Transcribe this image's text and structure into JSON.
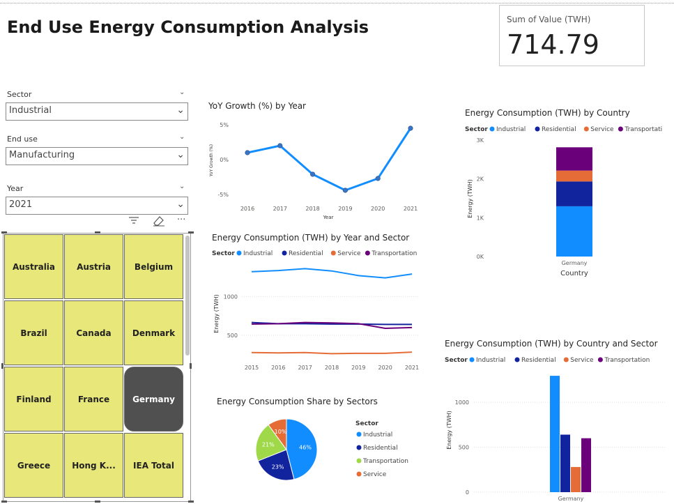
{
  "title": "End Use Energy Consumption Analysis",
  "card": {
    "label": "Sum of Value (TWH)",
    "value": "714.79"
  },
  "slicers": [
    {
      "label": "Sector",
      "value": "Industrial"
    },
    {
      "label": "End use",
      "value": "Manufacturing"
    },
    {
      "label": "Year",
      "value": "2021"
    }
  ],
  "toolbar": {
    "filter_icon": "filter-icon",
    "eraser_icon": "eraser-icon",
    "more_label": "..."
  },
  "countries": [
    "Australia",
    "Austria",
    "Belgium",
    "Brazil",
    "Canada",
    "Denmark",
    "Finland",
    "France",
    "Germany",
    "Greece",
    "Hong K...",
    "IEA Total"
  ],
  "selected_country": "Germany",
  "colors": {
    "industrial": "#118dff",
    "residential": "#12239e",
    "service": "#e66c37",
    "transportation": "#6b007b",
    "tile": "#e8e87a",
    "tile_selected": "#505050"
  },
  "chart_data": [
    {
      "type": "line",
      "title": "YoY Growth (%) by Year",
      "xlabel": "Year",
      "ylabel": "YoY Growth (%)",
      "x": [
        2016,
        2017,
        2018,
        2019,
        2020,
        2021
      ],
      "series": [
        {
          "values": [
            1.0,
            2.0,
            -2.1,
            -4.4,
            -2.7,
            4.5
          ]
        }
      ],
      "yticks": [
        "5%",
        "0%",
        "-5%"
      ],
      "ylim": [
        -5,
        5
      ]
    },
    {
      "type": "line",
      "title": "Energy Consumption (TWH) by Year and Sector",
      "legend_title": "Sector",
      "xlabel": "",
      "ylabel": "Energy (TWH)",
      "x": [
        2015,
        2016,
        2017,
        2018,
        2019,
        2020,
        2021
      ],
      "series": [
        {
          "name": "Industrial",
          "values": [
            1325,
            1340,
            1365,
            1335,
            1275,
            1245,
            1295
          ]
        },
        {
          "name": "Residential",
          "values": [
            665,
            650,
            650,
            645,
            645,
            640,
            640
          ]
        },
        {
          "name": "Service",
          "values": [
            275,
            270,
            275,
            260,
            265,
            265,
            280
          ]
        },
        {
          "name": "Transportation",
          "values": [
            645,
            650,
            665,
            660,
            650,
            590,
            600
          ]
        }
      ],
      "yticks": [
        "1000",
        "500"
      ],
      "ylim": [
        200,
        1450
      ]
    },
    {
      "type": "pie",
      "title": "Energy Consumption Share by Sectors",
      "legend_title": "Sector",
      "slices": [
        {
          "name": "Industrial",
          "value": 46,
          "label": "46%"
        },
        {
          "name": "Residential",
          "value": 23,
          "label": "23%"
        },
        {
          "name": "Transportation",
          "value": 21,
          "label": "21%"
        },
        {
          "name": "Service",
          "value": 10,
          "label": "10%"
        }
      ]
    },
    {
      "type": "bar",
      "stacked": true,
      "title": "Energy Consumption (TWH) by Country",
      "legend_title": "Sector",
      "xlabel": "Country",
      "ylabel": "Energy (TWH)",
      "categories": [
        "Germany"
      ],
      "series": [
        {
          "name": "Industrial",
          "values": [
            1295
          ]
        },
        {
          "name": "Residential",
          "values": [
            640
          ]
        },
        {
          "name": "Service",
          "values": [
            280
          ]
        },
        {
          "name": "Transportation",
          "values": [
            600
          ]
        }
      ],
      "yticks": [
        "3K",
        "2K",
        "1K",
        "0K"
      ],
      "ylim": [
        0,
        3000
      ]
    },
    {
      "type": "bar",
      "stacked": false,
      "title": "Energy Consumption (TWH) by Country and Sector",
      "legend_title": "Sector",
      "xlabel": "",
      "ylabel": "Energy (TWH)",
      "categories": [
        "Germany"
      ],
      "series": [
        {
          "name": "Industrial",
          "values": [
            1295
          ]
        },
        {
          "name": "Residential",
          "values": [
            640
          ]
        },
        {
          "name": "Service",
          "values": [
            280
          ]
        },
        {
          "name": "Transportation",
          "values": [
            600
          ]
        }
      ],
      "yticks": [
        "1000",
        "500",
        "0"
      ],
      "ylim": [
        0,
        1350
      ]
    }
  ]
}
